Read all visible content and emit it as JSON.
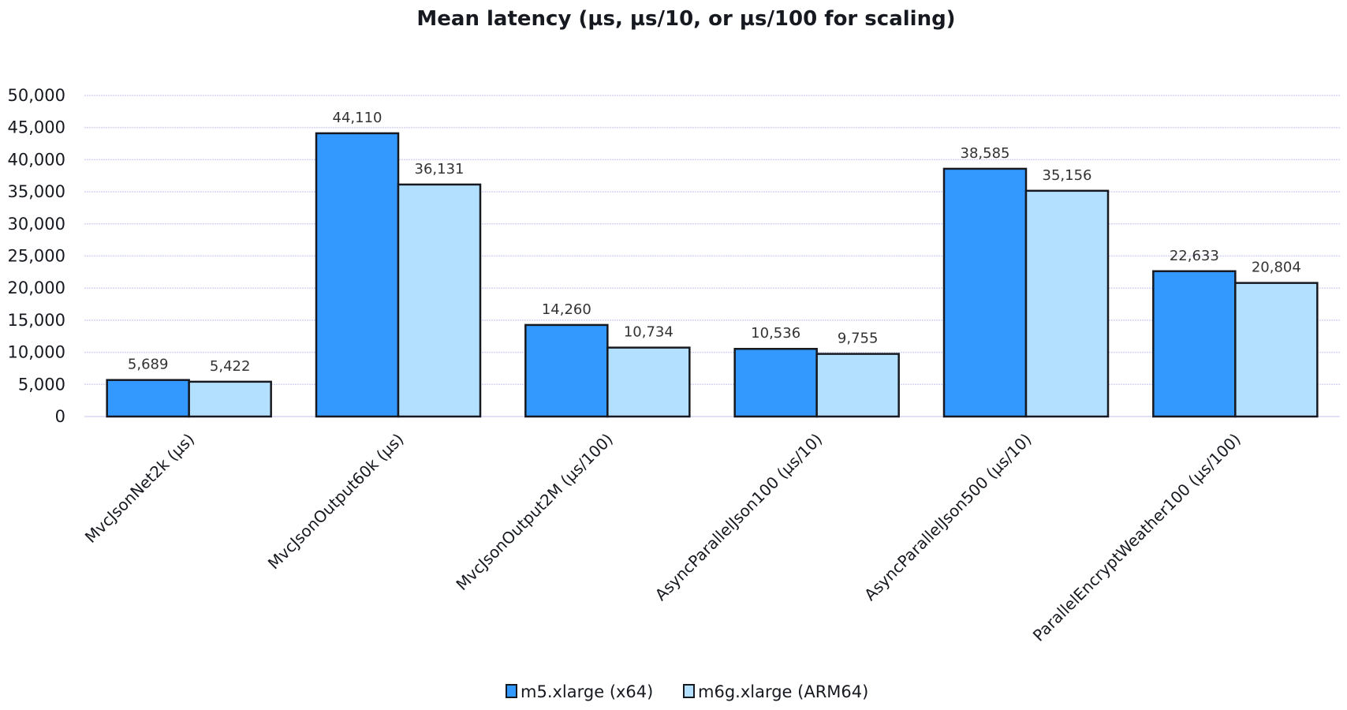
{
  "chart_data": {
    "type": "bar",
    "title": "Mean latency (µs, µs/10, or µs/100 for scaling)",
    "categories": [
      "MvcJsonNet2k (µs)",
      "MvcJsonOutput60k (µs)",
      "MvcJsonOutput2M (µs/100)",
      "AsyncParallelJson100 (µs/10)",
      "AsyncParallelJson500 (µs/10)",
      "ParallelEncryptWeather100 (µs/100)"
    ],
    "series": [
      {
        "name": "m5.xlarge (x64)",
        "values": [
          5689,
          44110,
          14260,
          10536,
          38585,
          22633
        ],
        "labels": [
          "5,689",
          "44,110",
          "14,260",
          "10,536",
          "38,585",
          "22,633"
        ],
        "color": "#3399ff"
      },
      {
        "name": "m6g.xlarge (ARM64)",
        "values": [
          5422,
          36131,
          10734,
          9755,
          35156,
          20804
        ],
        "labels": [
          "5,422",
          "36,131",
          "10,734",
          "9,755",
          "35,156",
          "20,804"
        ],
        "color": "#b3e0ff"
      }
    ],
    "ylim": [
      0,
      50000
    ],
    "yticks": [
      "0",
      "5,000",
      "10,000",
      "15,000",
      "20,000",
      "25,000",
      "30,000",
      "35,000",
      "40,000",
      "45,000",
      "50,000"
    ],
    "grid": true,
    "legend": "bottom",
    "outline_color": "#16191f",
    "grid_color": "#d5d5f5"
  }
}
